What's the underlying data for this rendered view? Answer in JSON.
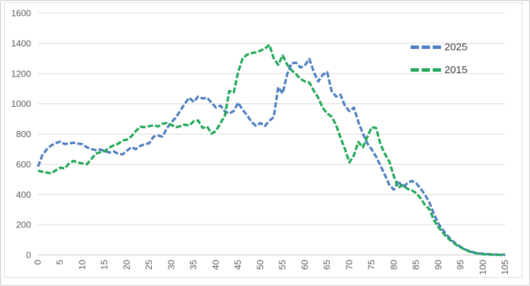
{
  "chart": {
    "background_color": "#ffffff",
    "gridline_color": "#d9d9d9",
    "axis_line_color": "#bfbfbf",
    "tick_label_color": "#595959",
    "legend_text_color": "#404040",
    "frame_border_color": "#dedede"
  },
  "chart_data": {
    "type": "line",
    "title": "",
    "xlabel": "",
    "ylabel": "",
    "xlim": [
      0,
      105
    ],
    "ylim": [
      0,
      1600
    ],
    "x_tick_step": 5,
    "y_tick_step": 200,
    "x_ticks": [
      "0",
      "5",
      "10",
      "15",
      "20",
      "25",
      "30",
      "35",
      "40",
      "45",
      "50",
      "55",
      "60",
      "65",
      "70",
      "75",
      "80",
      "85",
      "90",
      "95",
      "100",
      "105"
    ],
    "y_ticks": [
      "0",
      "200",
      "400",
      "600",
      "800",
      "1000",
      "1200",
      "1400",
      "1600"
    ],
    "grid": "horizontal",
    "legend_position": "top-right",
    "line_style": "dashed",
    "x": {
      "start": 0,
      "end": 105,
      "step": 1,
      "meaning": "age"
    },
    "series": [
      {
        "name": "2025",
        "color": "#4d7ebf",
        "values": [
          585,
          660,
          700,
          725,
          740,
          750,
          734,
          738,
          742,
          737,
          733,
          712,
          700,
          694,
          698,
          688,
          678,
          685,
          670,
          665,
          690,
          713,
          700,
          722,
          732,
          740,
          783,
          790,
          783,
          840,
          878,
          910,
          955,
          1000,
          1040,
          1012,
          1048,
          1035,
          1040,
          1008,
          975,
          988,
          950,
          936,
          952,
          1008,
          960,
          925,
          880,
          855,
          873,
          853,
          888,
          912,
          1110,
          1068,
          1195,
          1268,
          1272,
          1240,
          1256,
          1297,
          1210,
          1148,
          1192,
          1210,
          1085,
          1048,
          1060,
          985,
          952,
          975,
          880,
          805,
          740,
          698,
          650,
          590,
          528,
          462,
          432,
          490,
          445,
          475,
          490,
          475,
          440,
          398,
          345,
          272,
          208,
          165,
          128,
          98,
          72,
          54,
          37,
          25,
          17,
          11,
          8,
          6,
          4,
          3,
          2,
          2
        ]
      },
      {
        "name": "2015",
        "color": "#21a758",
        "values": [
          558,
          550,
          545,
          540,
          560,
          578,
          572,
          605,
          622,
          612,
          605,
          600,
          635,
          670,
          680,
          686,
          710,
          725,
          735,
          757,
          763,
          785,
          820,
          848,
          845,
          852,
          858,
          850,
          868,
          873,
          860,
          845,
          852,
          862,
          856,
          885,
          890,
          840,
          850,
          803,
          820,
          872,
          920,
          1085,
          1075,
          1210,
          1300,
          1325,
          1335,
          1340,
          1352,
          1365,
          1390,
          1300,
          1258,
          1320,
          1260,
          1222,
          1196,
          1165,
          1148,
          1140,
          1086,
          1040,
          973,
          936,
          916,
          860,
          777,
          700,
          612,
          660,
          748,
          712,
          780,
          845,
          840,
          730,
          668,
          615,
          520,
          445,
          462,
          438,
          428,
          410,
          375,
          330,
          302,
          230,
          185,
          148,
          115,
          90,
          67,
          50,
          35,
          23,
          14,
          9,
          5,
          3,
          2,
          1,
          1,
          0
        ]
      }
    ]
  }
}
